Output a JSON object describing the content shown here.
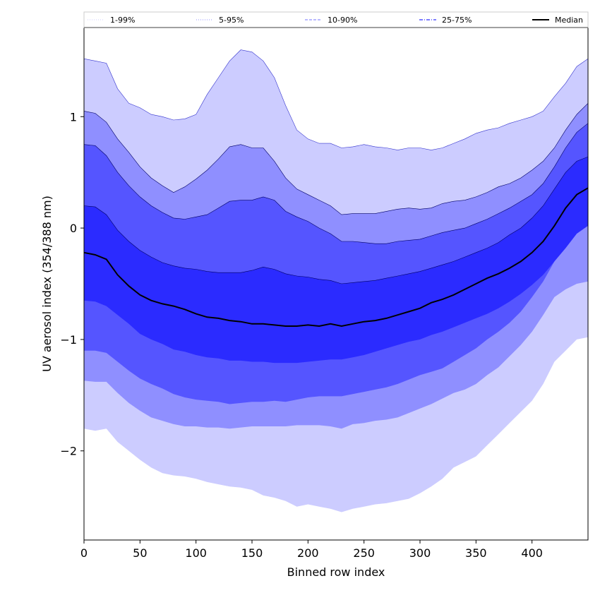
{
  "chart_data": {
    "type": "area",
    "title": "",
    "xlabel": "Binned row index",
    "ylabel": "UV aerosol index (354/388 nm)",
    "xlim": [
      0,
      450
    ],
    "ylim": [
      -2.8,
      1.8
    ],
    "xticks": [
      0,
      50,
      100,
      150,
      200,
      250,
      300,
      350,
      400
    ],
    "xtick_labels": [
      "0",
      "50",
      "100",
      "150",
      "200",
      "250",
      "300",
      "350",
      "400"
    ],
    "yticks": [
      -2,
      -1,
      0,
      1
    ],
    "ytick_labels": [
      "−2",
      "−1",
      "0",
      "1"
    ],
    "legend": {
      "placement": "top",
      "entries": [
        {
          "label": "1-99%",
          "color": "#ccccff",
          "style": "dotted"
        },
        {
          "label": "5-95%",
          "color": "#8f8fff",
          "style": "dotted"
        },
        {
          "label": "10-90%",
          "color": "#5555ff",
          "style": "dashed"
        },
        {
          "label": "25-75%",
          "color": "#2b2bff",
          "style": "dashdot"
        },
        {
          "label": "Median",
          "color": "#000000",
          "style": "solid"
        }
      ]
    },
    "x": [
      0,
      10,
      20,
      30,
      40,
      50,
      60,
      70,
      80,
      90,
      100,
      110,
      120,
      130,
      140,
      150,
      160,
      170,
      180,
      190,
      200,
      210,
      220,
      230,
      240,
      250,
      260,
      270,
      280,
      290,
      300,
      310,
      320,
      330,
      340,
      350,
      360,
      370,
      380,
      390,
      400,
      410,
      420,
      430,
      440,
      450
    ],
    "bands": [
      {
        "name": "1-99%",
        "color": "#ccccff",
        "upper": [
          1.52,
          1.5,
          1.48,
          1.25,
          1.12,
          1.08,
          1.02,
          1.0,
          0.97,
          0.98,
          1.02,
          1.2,
          1.35,
          1.5,
          1.6,
          1.58,
          1.5,
          1.35,
          1.1,
          0.88,
          0.8,
          0.76,
          0.76,
          0.72,
          0.73,
          0.75,
          0.73,
          0.72,
          0.7,
          0.72,
          0.72,
          0.7,
          0.72,
          0.76,
          0.8,
          0.85,
          0.88,
          0.9,
          0.94,
          0.97,
          1.0,
          1.05,
          1.18,
          1.3,
          1.45,
          1.52
        ],
        "lower": [
          -1.8,
          -1.82,
          -1.8,
          -1.92,
          -2.0,
          -2.08,
          -2.15,
          -2.2,
          -2.22,
          -2.23,
          -2.25,
          -2.28,
          -2.3,
          -2.32,
          -2.33,
          -2.35,
          -2.4,
          -2.42,
          -2.45,
          -2.5,
          -2.48,
          -2.5,
          -2.52,
          -2.55,
          -2.52,
          -2.5,
          -2.48,
          -2.47,
          -2.45,
          -2.43,
          -2.38,
          -2.32,
          -2.25,
          -2.15,
          -2.1,
          -2.05,
          -1.95,
          -1.85,
          -1.75,
          -1.65,
          -1.55,
          -1.4,
          -1.2,
          -1.1,
          -1.0,
          -0.98
        ]
      },
      {
        "name": "5-95%",
        "color": "#8f8fff",
        "upper": [
          1.05,
          1.03,
          0.95,
          0.8,
          0.68,
          0.55,
          0.45,
          0.38,
          0.32,
          0.37,
          0.44,
          0.52,
          0.62,
          0.73,
          0.75,
          0.72,
          0.72,
          0.6,
          0.45,
          0.35,
          0.3,
          0.25,
          0.2,
          0.12,
          0.13,
          0.13,
          0.13,
          0.15,
          0.17,
          0.18,
          0.17,
          0.18,
          0.22,
          0.24,
          0.25,
          0.28,
          0.32,
          0.37,
          0.4,
          0.45,
          0.52,
          0.6,
          0.72,
          0.88,
          1.02,
          1.12
        ],
        "lower": [
          -1.37,
          -1.38,
          -1.38,
          -1.48,
          -1.57,
          -1.64,
          -1.7,
          -1.73,
          -1.76,
          -1.78,
          -1.78,
          -1.79,
          -1.79,
          -1.8,
          -1.79,
          -1.78,
          -1.78,
          -1.78,
          -1.78,
          -1.77,
          -1.77,
          -1.77,
          -1.78,
          -1.8,
          -1.76,
          -1.75,
          -1.73,
          -1.72,
          -1.7,
          -1.66,
          -1.62,
          -1.58,
          -1.53,
          -1.48,
          -1.45,
          -1.4,
          -1.32,
          -1.25,
          -1.15,
          -1.05,
          -0.93,
          -0.78,
          -0.62,
          -0.55,
          -0.5,
          -0.48
        ]
      },
      {
        "name": "10-90%",
        "color": "#5555ff",
        "upper": [
          0.75,
          0.74,
          0.65,
          0.5,
          0.38,
          0.28,
          0.2,
          0.14,
          0.09,
          0.08,
          0.1,
          0.12,
          0.18,
          0.24,
          0.25,
          0.25,
          0.28,
          0.25,
          0.15,
          0.1,
          0.06,
          0.0,
          -0.05,
          -0.12,
          -0.12,
          -0.13,
          -0.14,
          -0.14,
          -0.12,
          -0.11,
          -0.1,
          -0.07,
          -0.04,
          -0.02,
          0.0,
          0.04,
          0.08,
          0.13,
          0.18,
          0.24,
          0.3,
          0.4,
          0.55,
          0.72,
          0.86,
          0.94
        ],
        "lower": [
          -1.1,
          -1.1,
          -1.12,
          -1.2,
          -1.28,
          -1.35,
          -1.4,
          -1.44,
          -1.49,
          -1.52,
          -1.54,
          -1.55,
          -1.56,
          -1.58,
          -1.57,
          -1.56,
          -1.56,
          -1.55,
          -1.56,
          -1.54,
          -1.52,
          -1.51,
          -1.51,
          -1.51,
          -1.49,
          -1.47,
          -1.45,
          -1.43,
          -1.4,
          -1.36,
          -1.32,
          -1.29,
          -1.26,
          -1.2,
          -1.14,
          -1.08,
          -1.0,
          -0.93,
          -0.85,
          -0.75,
          -0.62,
          -0.48,
          -0.3,
          -0.15,
          0.03,
          0.1
        ]
      },
      {
        "name": "25-75%",
        "color": "#2b2bff",
        "upper": [
          0.2,
          0.19,
          0.12,
          -0.02,
          -0.12,
          -0.2,
          -0.26,
          -0.31,
          -0.34,
          -0.36,
          -0.37,
          -0.39,
          -0.4,
          -0.4,
          -0.4,
          -0.38,
          -0.35,
          -0.37,
          -0.41,
          -0.43,
          -0.44,
          -0.46,
          -0.47,
          -0.5,
          -0.49,
          -0.48,
          -0.47,
          -0.45,
          -0.43,
          -0.41,
          -0.39,
          -0.36,
          -0.33,
          -0.3,
          -0.26,
          -0.22,
          -0.18,
          -0.13,
          -0.06,
          0.0,
          0.09,
          0.2,
          0.35,
          0.5,
          0.6,
          0.64
        ],
        "lower": [
          -0.65,
          -0.66,
          -0.7,
          -0.78,
          -0.86,
          -0.95,
          -1.0,
          -1.04,
          -1.09,
          -1.11,
          -1.14,
          -1.16,
          -1.17,
          -1.19,
          -1.19,
          -1.2,
          -1.2,
          -1.21,
          -1.21,
          -1.21,
          -1.2,
          -1.19,
          -1.18,
          -1.18,
          -1.16,
          -1.14,
          -1.11,
          -1.08,
          -1.05,
          -1.02,
          -1.0,
          -0.96,
          -0.93,
          -0.89,
          -0.85,
          -0.81,
          -0.77,
          -0.72,
          -0.66,
          -0.59,
          -0.51,
          -0.42,
          -0.3,
          -0.18,
          -0.05,
          0.02
        ]
      }
    ],
    "median": {
      "name": "Median",
      "color": "#000000",
      "values": [
        -0.22,
        -0.24,
        -0.28,
        -0.42,
        -0.52,
        -0.6,
        -0.65,
        -0.68,
        -0.7,
        -0.73,
        -0.77,
        -0.8,
        -0.81,
        -0.83,
        -0.84,
        -0.86,
        -0.86,
        -0.87,
        -0.88,
        -0.88,
        -0.87,
        -0.88,
        -0.86,
        -0.88,
        -0.86,
        -0.84,
        -0.83,
        -0.81,
        -0.78,
        -0.75,
        -0.72,
        -0.67,
        -0.64,
        -0.6,
        -0.55,
        -0.5,
        -0.45,
        -0.41,
        -0.36,
        -0.3,
        -0.22,
        -0.12,
        0.02,
        0.18,
        0.3,
        0.36
      ]
    }
  }
}
